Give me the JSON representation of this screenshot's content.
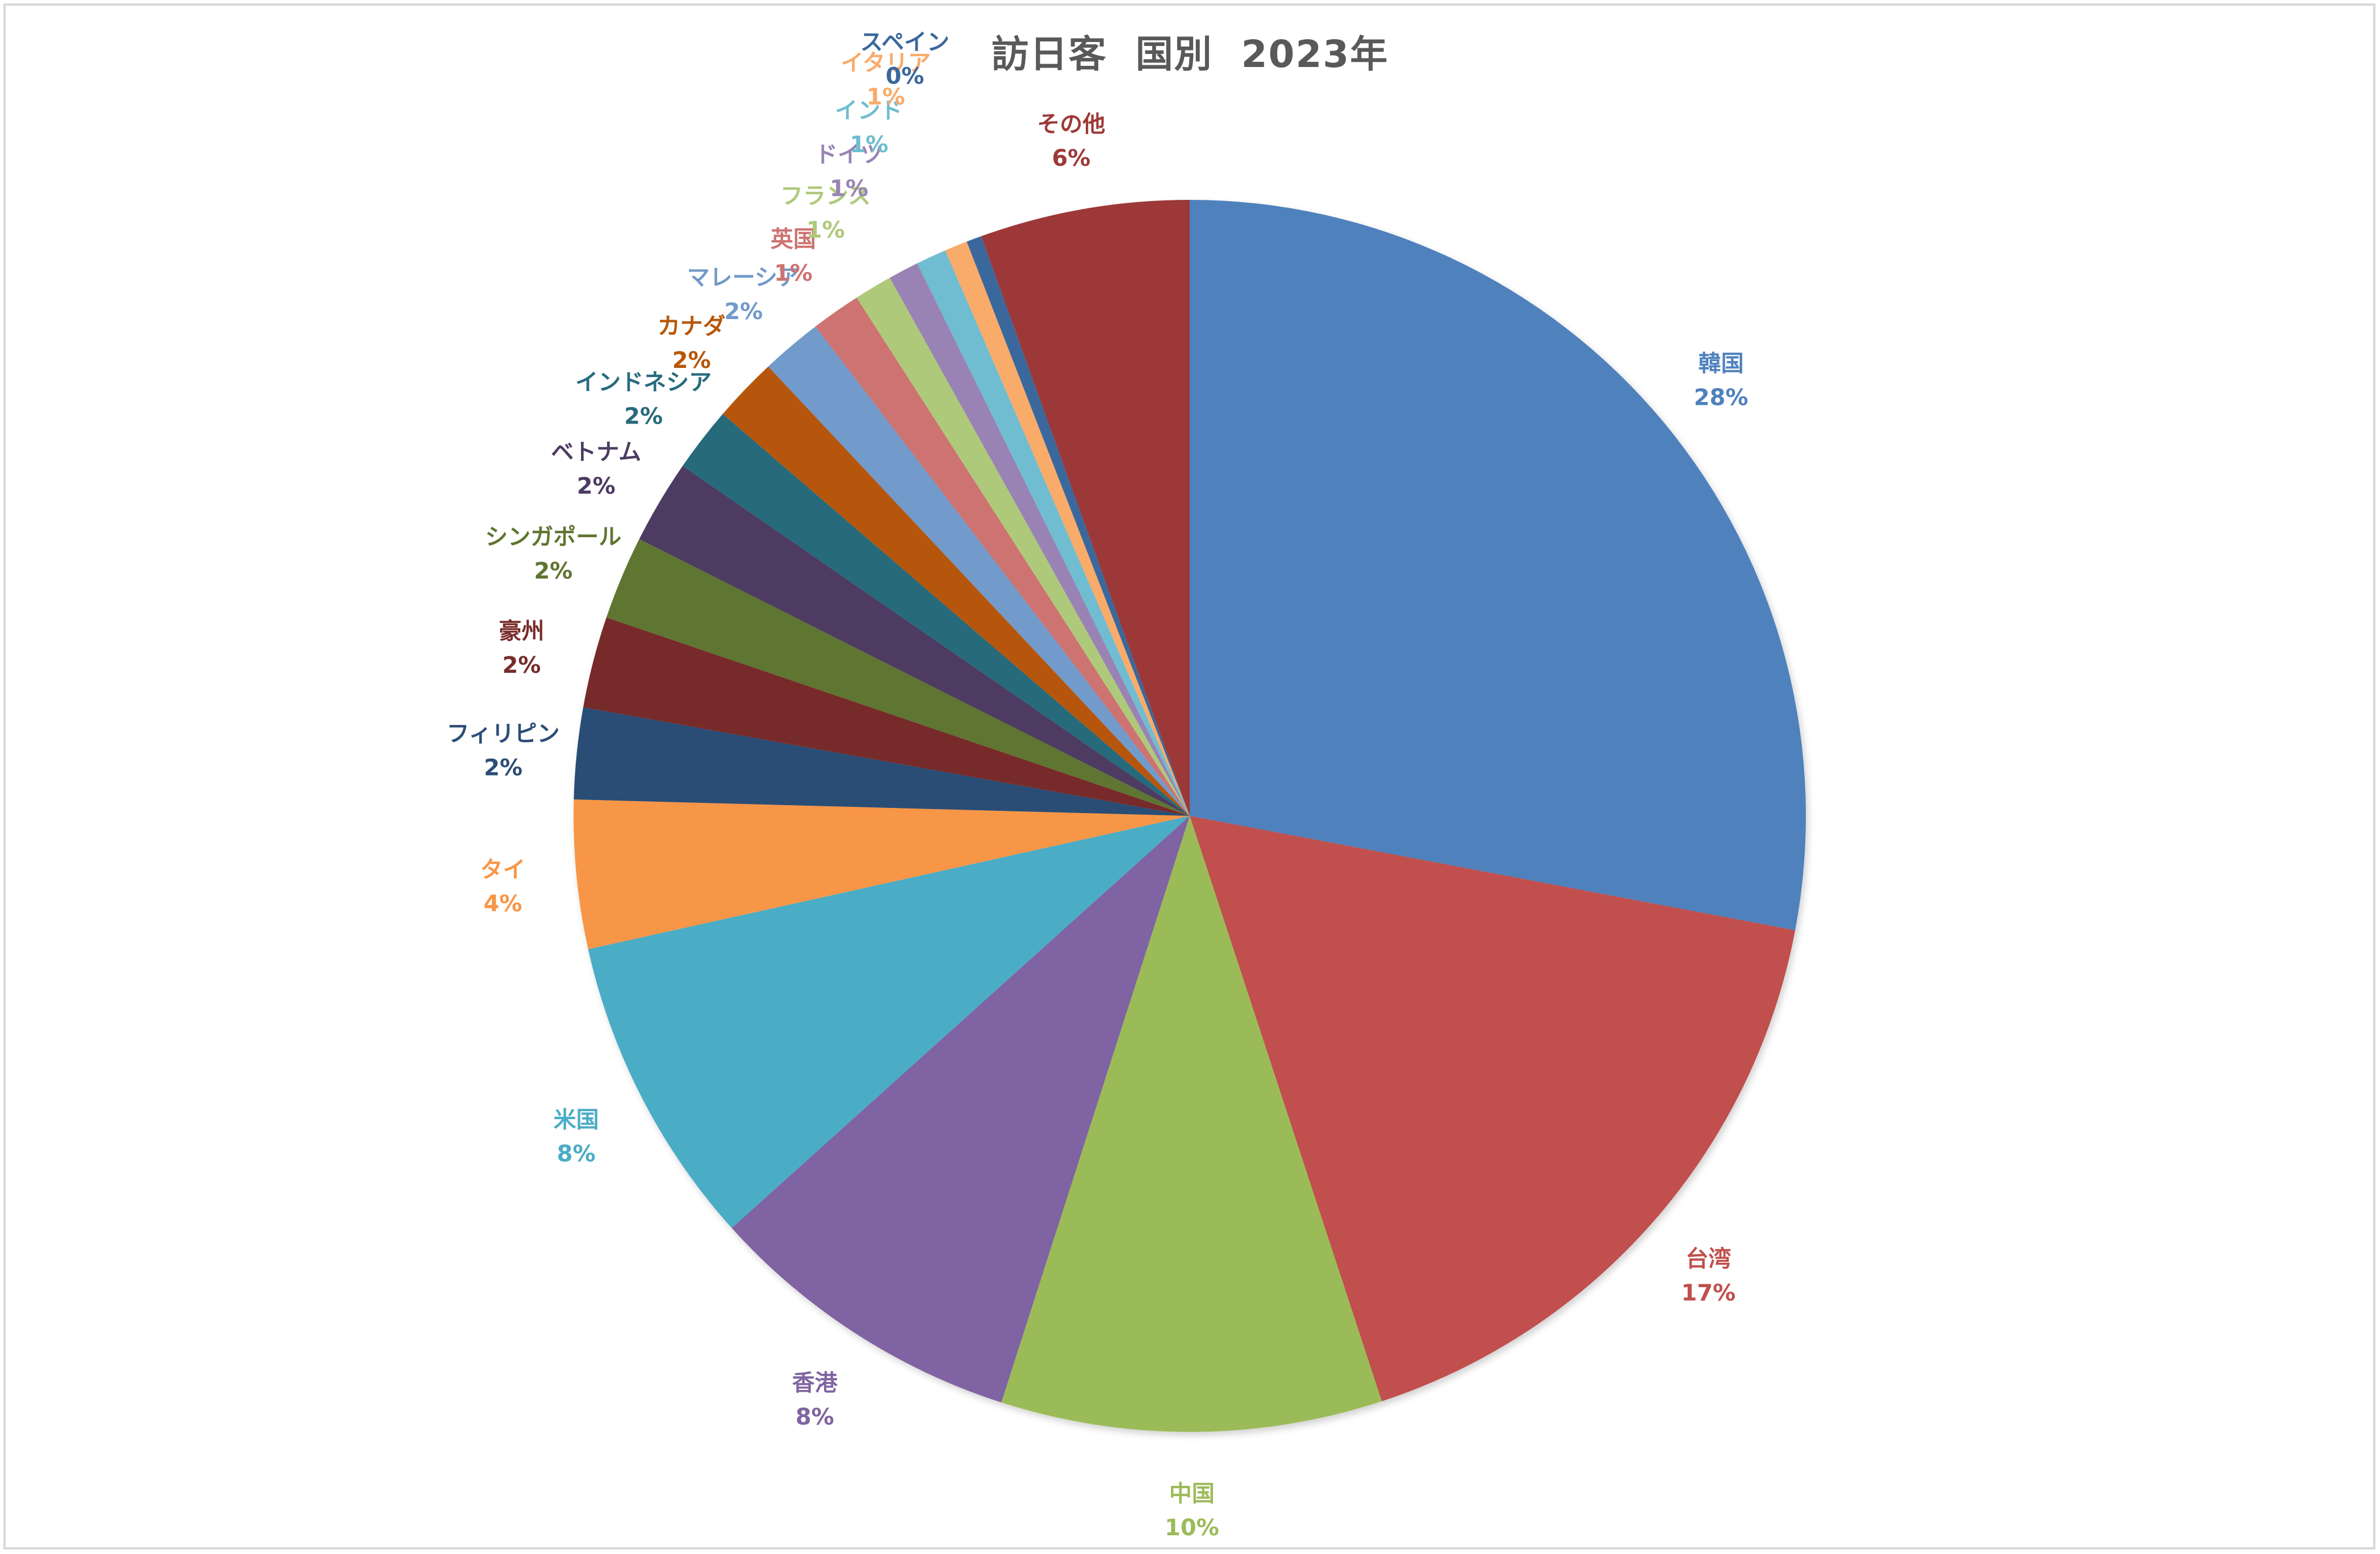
{
  "chart_data": {
    "type": "pie",
    "title": "訪日客  国別  2023年",
    "start_angle_deg": 0,
    "direction": "clockwise",
    "legend": "none",
    "slices": [
      {
        "label": "韓国",
        "value": 28,
        "display": "28%",
        "color": "#4F81BD",
        "label_color": "#4F81BD"
      },
      {
        "label": "台湾",
        "value": 17,
        "display": "17%",
        "color": "#C0504D",
        "label_color": "#C0504D"
      },
      {
        "label": "中国",
        "value": 10,
        "display": "10%",
        "color": "#9BBB59",
        "label_color": "#9BBB59"
      },
      {
        "label": "香港",
        "value": 8.4,
        "display": "8%",
        "color": "#8064A2",
        "label_color": "#8064A2"
      },
      {
        "label": "米国",
        "value": 8.2,
        "display": "8%",
        "color": "#4BACC6",
        "label_color": "#4BACC6"
      },
      {
        "label": "タイ",
        "value": 3.9,
        "display": "4%",
        "color": "#F79646",
        "label_color": "#F79646"
      },
      {
        "label": "フィリピン",
        "value": 2.4,
        "display": "2%",
        "color": "#2C4D75",
        "label_color": "#2C4D75"
      },
      {
        "label": "豪州",
        "value": 2.4,
        "display": "2%",
        "color": "#772C2A",
        "label_color": "#772C2A"
      },
      {
        "label": "シンガポール",
        "value": 2.2,
        "display": "2%",
        "color": "#5F7530",
        "label_color": "#5F7530"
      },
      {
        "label": "ベトナム",
        "value": 2.2,
        "display": "2%",
        "color": "#4D3B62",
        "label_color": "#4D3B62"
      },
      {
        "label": "インドネシア",
        "value": 1.7,
        "display": "2%",
        "color": "#276A7C",
        "label_color": "#276A7C"
      },
      {
        "label": "カナダ",
        "value": 1.7,
        "display": "2%",
        "color": "#B65708",
        "label_color": "#B65708"
      },
      {
        "label": "マレーシア",
        "value": 1.6,
        "display": "2%",
        "color": "#729ACA",
        "label_color": "#729ACA"
      },
      {
        "label": "英国",
        "value": 1.3,
        "display": "1%",
        "color": "#CD7371",
        "label_color": "#CD7371"
      },
      {
        "label": "フランス",
        "value": 1.0,
        "display": "1%",
        "color": "#AFC97A",
        "label_color": "#AFC97A"
      },
      {
        "label": "ドイツ",
        "value": 0.8,
        "display": "1%",
        "color": "#9983B5",
        "label_color": "#9983B5"
      },
      {
        "label": "インド",
        "value": 0.8,
        "display": "1%",
        "color": "#6FBDD1",
        "label_color": "#6FBDD1"
      },
      {
        "label": "イタリア",
        "value": 0.6,
        "display": "1%",
        "color": "#F9AB6B",
        "label_color": "#F9AB6B"
      },
      {
        "label": "スペイン",
        "value": 0.4,
        "display": "0%",
        "color": "#3A679C",
        "label_color": "#3A679C"
      },
      {
        "label": "その他",
        "value": 5.5,
        "display": "6%",
        "color": "#9C3937",
        "label_color": "#9C3937"
      }
    ]
  }
}
